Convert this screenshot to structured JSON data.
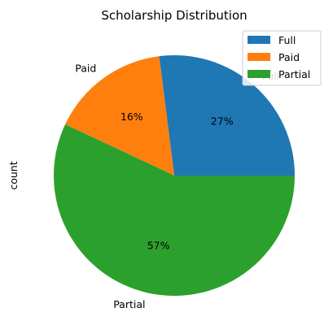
{
  "chart_data": {
    "type": "pie",
    "title": "Scholarship Distribution",
    "ylabel": "count",
    "slices": [
      {
        "label": "Full",
        "percent": 27,
        "percent_label": "27%",
        "color": "#1f77b4"
      },
      {
        "label": "Paid",
        "percent": 16,
        "percent_label": "16%",
        "color": "#ff7f0e"
      },
      {
        "label": "Partial",
        "percent": 57,
        "percent_label": "57%",
        "color": "#2ca02c"
      }
    ],
    "start_angle_deg": 0,
    "direction": "counterclockwise",
    "legend": {
      "placement": "top-right",
      "entries": [
        "Full",
        "Paid",
        "Partial"
      ]
    }
  }
}
